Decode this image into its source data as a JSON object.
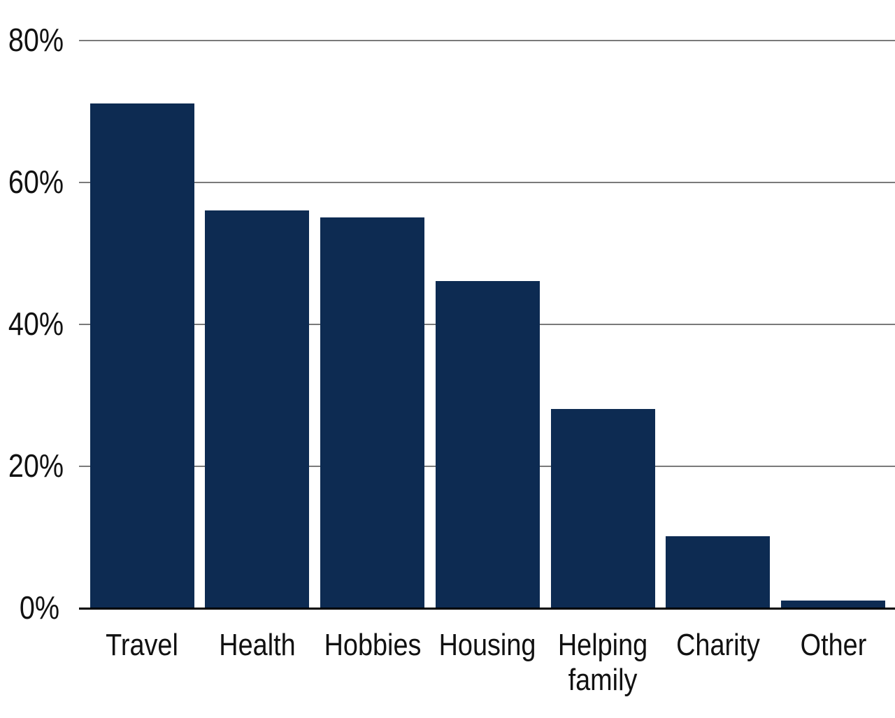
{
  "chart_data": {
    "type": "bar",
    "categories": [
      "Travel",
      "Health",
      "Hobbies",
      "Housing",
      "Helping family",
      "Charity",
      "Other"
    ],
    "values": [
      71,
      56,
      55,
      46,
      28,
      10,
      1
    ],
    "unit": "%",
    "title": "",
    "xlabel": "",
    "ylabel": "",
    "ylim": [
      0,
      80
    ],
    "yticks": [
      0,
      20,
      40,
      60,
      80
    ],
    "ytick_labels": [
      "0%",
      "20%",
      "40%",
      "60%",
      "80%"
    ],
    "grid": true,
    "legend": false,
    "legend_position": "none",
    "orientation": "vertical",
    "colors": {
      "bar": "#0d2b52",
      "gridline": "#7a7a7a",
      "axis": "#000000",
      "label": "#111111",
      "background": "#ffffff"
    }
  }
}
